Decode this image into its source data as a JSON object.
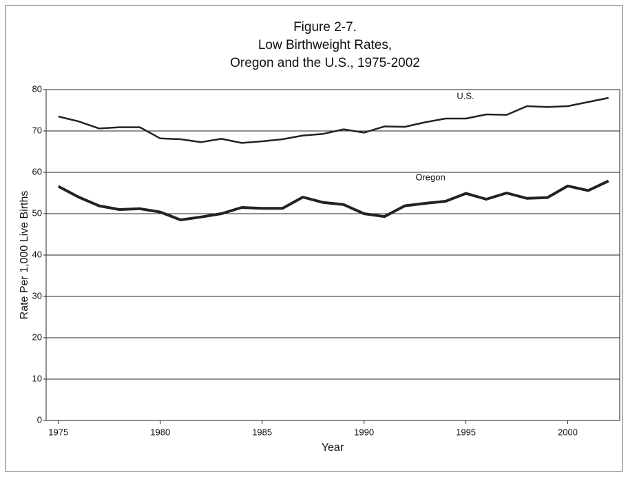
{
  "chart_data": {
    "type": "line",
    "title": [
      "Figure 2-7.",
      "Low Birthweight Rates,",
      "Oregon and the U.S., 1975-2002"
    ],
    "x_label": "Year",
    "y_label": "Rate Per 1,000 Live Births",
    "x": [
      1975,
      1976,
      1977,
      1978,
      1979,
      1980,
      1981,
      1982,
      1983,
      1984,
      1985,
      1986,
      1987,
      1988,
      1989,
      1990,
      1991,
      1992,
      1993,
      1994,
      1995,
      1996,
      1997,
      1998,
      1999,
      2000,
      2001,
      2002
    ],
    "series": [
      {
        "name": "U.S.",
        "color": "#222222",
        "width": 2.5,
        "values": [
          73.5,
          72.3,
          70.6,
          70.9,
          70.9,
          68.2,
          68.0,
          67.3,
          68.1,
          67.1,
          67.5,
          68.0,
          68.9,
          69.3,
          70.4,
          69.6,
          71.1,
          71.0,
          72.1,
          73.0,
          73.0,
          74.0,
          73.9,
          76.0,
          75.8,
          76.0,
          77.0,
          78.0
        ]
      },
      {
        "name": "Oregon",
        "color": "#222222",
        "width": 4,
        "values": [
          56.6,
          54.0,
          51.9,
          51.0,
          51.2,
          50.4,
          48.5,
          49.2,
          50.0,
          51.5,
          51.3,
          51.3,
          54.0,
          52.7,
          52.2,
          50.0,
          49.3,
          51.9,
          52.5,
          53.0,
          54.9,
          53.5,
          55.0,
          53.7,
          53.9,
          56.7,
          55.6,
          57.9
        ]
      }
    ],
    "xlim": [
      1974.4,
      2002.55
    ],
    "xticks": [
      1975,
      1980,
      1985,
      1990,
      1995,
      2000
    ],
    "ylim": [
      0,
      80
    ],
    "yticks": [
      0,
      10,
      20,
      30,
      40,
      50,
      60,
      70,
      80
    ],
    "grid": true
  }
}
